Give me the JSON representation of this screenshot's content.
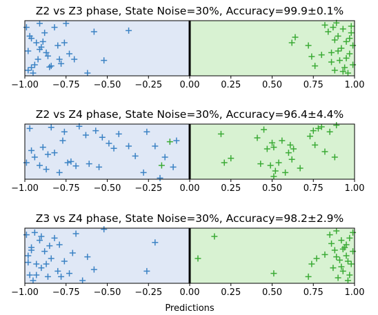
{
  "figure": {
    "xlabel": "Predictions"
  },
  "colors": {
    "negative_region": "#e0e8f6",
    "positive_region": "#d8f2d2",
    "negative_marker": "#3b82c4",
    "positive_marker": "#3aaa35",
    "divider": "#000000"
  },
  "chart_data": [
    {
      "type": "scatter",
      "title": "Z2 vs Z3 phase, State Noise=30%, Accuracy=99.9±0.1%",
      "xlim": [
        -1.0,
        1.0
      ],
      "ylim": [
        0,
        1
      ],
      "xticks": [
        -1.0,
        -0.75,
        -0.5,
        -0.25,
        0.0,
        0.25,
        0.5,
        0.75,
        1.0
      ],
      "xtick_labels": [
        "−1.00",
        "−0.75",
        "−0.50",
        "−0.25",
        "0.00",
        "0.25",
        "0.50",
        "0.75",
        "1.00"
      ],
      "yticks": [],
      "grid": false,
      "series": [
        {
          "class": "negative",
          "marker": "+",
          "x": [
            -0.99,
            -0.98,
            -0.97,
            -0.96,
            -0.95,
            -0.93,
            -0.92,
            -0.91,
            -0.9,
            -0.88,
            -0.86,
            -0.84,
            -0.82,
            -0.8,
            -0.78,
            -0.75,
            -0.73,
            -0.7,
            -0.62,
            -0.58,
            -0.52,
            -0.37,
            -0.98,
            -0.96,
            -0.94,
            -0.91,
            -0.89,
            -0.87,
            -0.85,
            -0.79,
            -0.76
          ],
          "y": [
            0.88,
            0.45,
            0.72,
            0.15,
            0.05,
            0.6,
            0.3,
            0.95,
            0.52,
            0.78,
            0.36,
            0.18,
            0.88,
            0.55,
            0.22,
            0.95,
            0.4,
            0.3,
            0.05,
            0.8,
            0.28,
            0.82,
            0.1,
            0.68,
            0.2,
            0.48,
            0.62,
            0.42,
            0.16,
            0.3,
            0.6
          ]
        },
        {
          "class": "positive",
          "marker": "+",
          "x": [
            0.62,
            0.64,
            0.72,
            0.74,
            0.76,
            0.82,
            0.84,
            0.86,
            0.87,
            0.88,
            0.89,
            0.9,
            0.91,
            0.92,
            0.93,
            0.94,
            0.95,
            0.96,
            0.97,
            0.98,
            0.99,
            0.99,
            0.98,
            0.97,
            0.95,
            0.93,
            0.9,
            0.88,
            0.86,
            0.8
          ],
          "y": [
            0.6,
            0.7,
            0.55,
            0.35,
            0.18,
            0.92,
            0.8,
            0.42,
            0.88,
            0.1,
            0.96,
            0.72,
            0.28,
            0.5,
            0.85,
            0.15,
            0.62,
            0.05,
            0.4,
            0.78,
            0.55,
            0.2,
            0.9,
            0.68,
            0.32,
            0.08,
            0.45,
            0.65,
            0.25,
            0.38
          ]
        }
      ]
    },
    {
      "type": "scatter",
      "title": "Z2 vs Z4 phase, State Noise=30%, Accuracy=96.4±4.4%",
      "xlim": [
        -1.0,
        1.0
      ],
      "ylim": [
        0,
        1
      ],
      "xticks": [
        -1.0,
        -0.75,
        -0.5,
        -0.25,
        0.0,
        0.25,
        0.5,
        0.75,
        1.0
      ],
      "xtick_labels": [
        "−1.00",
        "−0.75",
        "−0.50",
        "−0.25",
        "0.00",
        "0.25",
        "0.50",
        "0.75",
        "1.00"
      ],
      "yticks": [],
      "grid": false,
      "series": [
        {
          "class": "negative",
          "marker": "+",
          "x": [
            -0.97,
            -0.96,
            -0.94,
            -0.91,
            -0.89,
            -0.87,
            -0.84,
            -0.82,
            -0.79,
            -0.77,
            -0.76,
            -0.72,
            -0.69,
            -0.67,
            -0.63,
            -0.61,
            -0.57,
            -0.55,
            -0.53,
            -0.49,
            -0.46,
            -0.43,
            -0.37,
            -0.33,
            -0.28,
            -0.26,
            -0.21,
            -0.18,
            -0.15,
            -0.1,
            -0.08,
            -0.99,
            -0.86,
            -0.74
          ],
          "y": [
            0.92,
            0.52,
            0.4,
            0.25,
            0.58,
            0.18,
            0.94,
            0.48,
            0.12,
            0.7,
            0.86,
            0.32,
            0.24,
            0.96,
            0.8,
            0.28,
            0.88,
            0.22,
            0.76,
            0.65,
            0.56,
            0.82,
            0.6,
            0.42,
            0.12,
            0.86,
            0.6,
            0.02,
            0.4,
            0.22,
            0.7,
            0.3,
            0.45,
            0.3
          ]
        },
        {
          "class": "positive",
          "marker": "+",
          "x": [
            -0.17,
            -0.12,
            0.19,
            0.21,
            0.25,
            0.41,
            0.43,
            0.45,
            0.47,
            0.49,
            0.5,
            0.51,
            0.52,
            0.54,
            0.56,
            0.58,
            0.6,
            0.62,
            0.63,
            0.67,
            0.73,
            0.75,
            0.76,
            0.78,
            0.8,
            0.82,
            0.85,
            0.88,
            0.89,
            0.51,
            0.61
          ],
          "y": [
            0.25,
            0.68,
            0.82,
            0.3,
            0.38,
            0.75,
            0.28,
            0.9,
            0.55,
            0.25,
            0.66,
            0.58,
            0.15,
            0.3,
            0.7,
            0.12,
            0.48,
            0.36,
            0.55,
            0.2,
            0.78,
            0.88,
            0.62,
            0.92,
            0.95,
            0.5,
            0.86,
            0.4,
            0.98,
            0.05,
            0.62
          ]
        }
      ]
    },
    {
      "type": "scatter",
      "title": "Z3 vs Z4 phase, State Noise=30%, Accuracy=98.2±2.9%",
      "xlim": [
        -1.0,
        1.0
      ],
      "ylim": [
        0,
        1
      ],
      "xticks": [
        -1.0,
        -0.75,
        -0.5,
        -0.25,
        0.0,
        0.25,
        0.5,
        0.75,
        1.0
      ],
      "xtick_labels": [
        "−1.00",
        "−0.75",
        "−0.50",
        "−0.25",
        "0.00",
        "0.25",
        "0.50",
        "0.75",
        "1.00"
      ],
      "yticks": [],
      "grid": false,
      "series": [
        {
          "class": "negative",
          "marker": "+",
          "x": [
            -0.99,
            -0.98,
            -0.97,
            -0.96,
            -0.95,
            -0.94,
            -0.93,
            -0.91,
            -0.9,
            -0.88,
            -0.86,
            -0.84,
            -0.82,
            -0.8,
            -0.79,
            -0.76,
            -0.73,
            -0.71,
            -0.69,
            -0.65,
            -0.62,
            -0.58,
            -0.52,
            -0.21,
            -0.26,
            -0.98,
            -0.96,
            -0.93,
            -0.9,
            -0.87,
            -0.85,
            -0.78
          ],
          "y": [
            0.88,
            0.5,
            0.15,
            0.65,
            0.05,
            0.92,
            0.35,
            0.78,
            0.28,
            0.58,
            0.12,
            0.45,
            0.82,
            0.22,
            0.7,
            0.4,
            0.18,
            0.55,
            0.9,
            0.05,
            0.48,
            0.25,
            0.98,
            0.74,
            0.22,
            0.38,
            0.6,
            0.15,
            0.85,
            0.35,
            0.68,
            0.12
          ]
        },
        {
          "class": "positive",
          "marker": "+",
          "x": [
            0.05,
            0.15,
            0.51,
            0.72,
            0.74,
            0.77,
            0.82,
            0.85,
            0.86,
            0.87,
            0.88,
            0.89,
            0.9,
            0.91,
            0.92,
            0.93,
            0.94,
            0.95,
            0.96,
            0.97,
            0.98,
            0.99,
            0.99,
            0.97,
            0.95,
            0.92,
            0.89,
            0.96,
            0.93
          ],
          "y": [
            0.45,
            0.85,
            0.18,
            0.12,
            0.35,
            0.45,
            0.52,
            0.88,
            0.72,
            0.28,
            0.6,
            0.95,
            0.1,
            0.42,
            0.78,
            0.22,
            0.65,
            0.5,
            0.05,
            0.82,
            0.35,
            0.58,
            0.92,
            0.15,
            0.7,
            0.3,
            0.48,
            0.4,
            0.62
          ]
        }
      ]
    }
  ]
}
